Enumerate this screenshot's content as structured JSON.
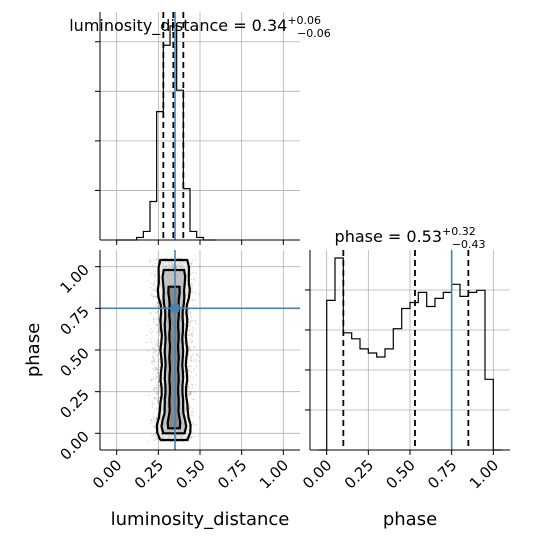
{
  "chart_data": [
    {
      "type": "histogram",
      "panel": "luminosity_distance marginal",
      "title": {
        "main": "luminosity_distance = 0.34",
        "sup": "+0.06",
        "sub": "−0.06"
      },
      "xlim": [
        -0.1,
        1.1
      ],
      "bin_edges": [
        0.0,
        0.04,
        0.08,
        0.12,
        0.16,
        0.2,
        0.24,
        0.28,
        0.32,
        0.36,
        0.4,
        0.44,
        0.48,
        0.52,
        0.56,
        0.6
      ],
      "counts": [
        0,
        0,
        0,
        0.012,
        0.04,
        0.18,
        0.6,
        0.91,
        1.0,
        0.7,
        0.24,
        0.04,
        0.012,
        0,
        0
      ],
      "quantiles": [
        0.28,
        0.34,
        0.4
      ],
      "truth": 0.35,
      "grid": true
    },
    {
      "type": "histogram",
      "panel": "phase marginal",
      "title": {
        "main": "phase = 0.53",
        "sup": "+0.32",
        "sub": "−0.43"
      },
      "xlim": [
        -0.1,
        1.1
      ],
      "bin_edges": [
        -0.05,
        0.0,
        0.05,
        0.1,
        0.15,
        0.2,
        0.25,
        0.3,
        0.35,
        0.4,
        0.45,
        0.5,
        0.55,
        0.6,
        0.65,
        0.7,
        0.75,
        0.8,
        0.85,
        0.9,
        0.95,
        1.0,
        1.05
      ],
      "counts": [
        0,
        0.74,
        0.95,
        0.58,
        0.55,
        0.5,
        0.48,
        0.46,
        0.5,
        0.6,
        0.7,
        0.73,
        0.78,
        0.71,
        0.75,
        0.78,
        0.82,
        0.76,
        0.78,
        0.79,
        0.35,
        0
      ],
      "quantiles": [
        0.1,
        0.53,
        0.85
      ],
      "truth": 0.75,
      "xlabel": "phase",
      "xticks": [
        "0.00",
        "0.25",
        "0.50",
        "0.75",
        "1.00"
      ],
      "grid": true
    },
    {
      "type": "scatter",
      "panel": "2D joint density",
      "xlabel": "luminosity_distance",
      "ylabel": "phase",
      "xlim": [
        -0.1,
        1.1
      ],
      "ylim": [
        -0.1,
        1.1
      ],
      "xticks": [
        "0.00",
        "0.25",
        "0.50",
        "0.75",
        "1.00"
      ],
      "yticks": [
        "0.00",
        "0.25",
        "0.50",
        "0.75",
        "1.00"
      ],
      "point_cloud": {
        "x_center": 0.34,
        "x_spread": 0.055,
        "y_range": [
          -0.05,
          1.05
        ],
        "count": 3000
      },
      "contour_levels": [
        "outer",
        "middle",
        "inner"
      ],
      "truth": {
        "x": 0.35,
        "y": 0.75
      },
      "grid": true
    }
  ]
}
